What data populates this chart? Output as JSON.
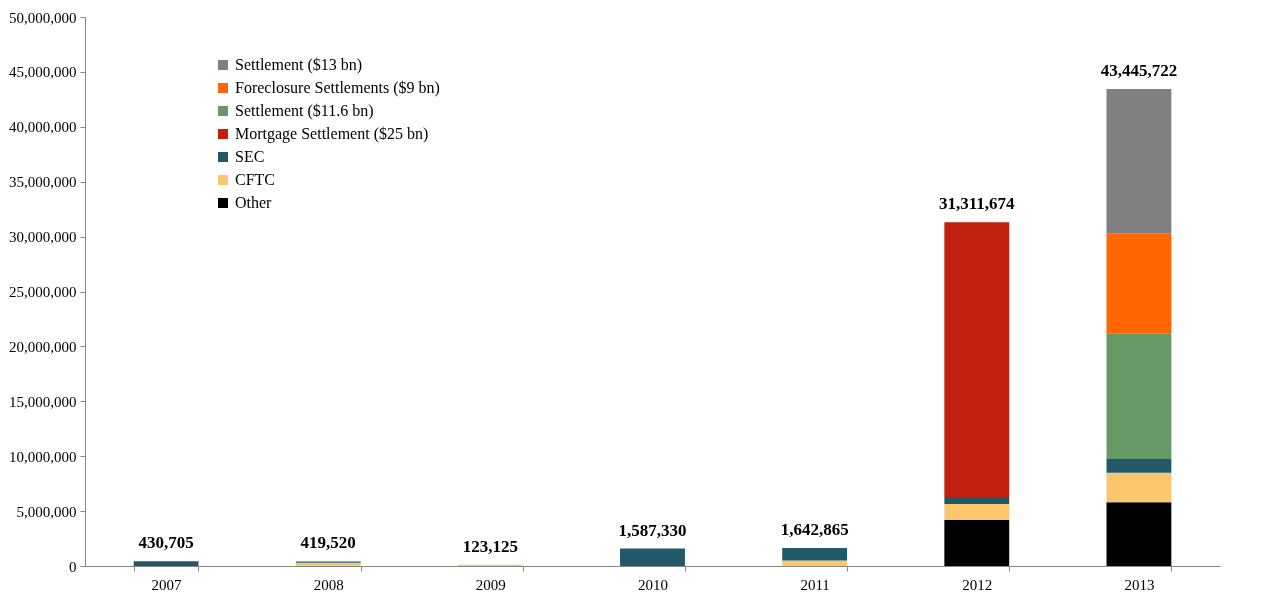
{
  "chart_data": {
    "type": "bar",
    "stacked": true,
    "categories": [
      "2007",
      "2008",
      "2009",
      "2010",
      "2011",
      "2012",
      "2013"
    ],
    "series": [
      {
        "name": "Other",
        "color": "#000000",
        "values": [
          0,
          0,
          0,
          0,
          0,
          4200000,
          5800000
        ]
      },
      {
        "name": "CFTC",
        "color": "#fac76e",
        "values": [
          0,
          300000,
          123125,
          0,
          500000,
          1450000,
          2700000
        ]
      },
      {
        "name": "SEC",
        "color": "#215968",
        "values": [
          430705,
          119520,
          0,
          1587330,
          1142865,
          550000,
          1250000
        ]
      },
      {
        "name": "Mortgage Settlement ($25 bn)",
        "color": "#c0200c",
        "values": [
          0,
          0,
          0,
          0,
          0,
          25111674,
          0
        ]
      },
      {
        "name": "Settlement ($11.6 bn)",
        "color": "#669966",
        "values": [
          0,
          0,
          0,
          0,
          0,
          0,
          11450000
        ]
      },
      {
        "name": "Foreclosure Settlements ($9 bn)",
        "color": "#ff6600",
        "values": [
          0,
          0,
          0,
          0,
          0,
          0,
          9100000
        ]
      },
      {
        "name": "Settlement ($13 bn)",
        "color": "#808080",
        "values": [
          0,
          0,
          0,
          0,
          0,
          0,
          13145722
        ]
      }
    ],
    "totals": [
      "430,705",
      "419,520",
      "123,125",
      "1,587,330",
      "1,642,865",
      "31,311,674",
      "43,445,722"
    ],
    "ylim": [
      0,
      50000000
    ],
    "yticks": [
      0,
      {
        "value": 5000000,
        "label": "5,000,000"
      },
      {
        "value": 10000000,
        "label": "10,000,000"
      },
      {
        "value": 15000000,
        "label": "15,000,000"
      },
      {
        "value": 20000000,
        "label": "20,000,000"
      },
      {
        "value": 25000000,
        "label": "25,000,000"
      },
      {
        "value": 30000000,
        "label": "30,000,000"
      },
      {
        "value": 35000000,
        "label": "35,000,000"
      },
      {
        "value": 40000000,
        "label": "40,000,000"
      },
      {
        "value": 45000000,
        "label": "45,000,000"
      },
      {
        "value": 50000000,
        "label": "50,000,000"
      }
    ],
    "grid": false,
    "legend": "top left"
  }
}
